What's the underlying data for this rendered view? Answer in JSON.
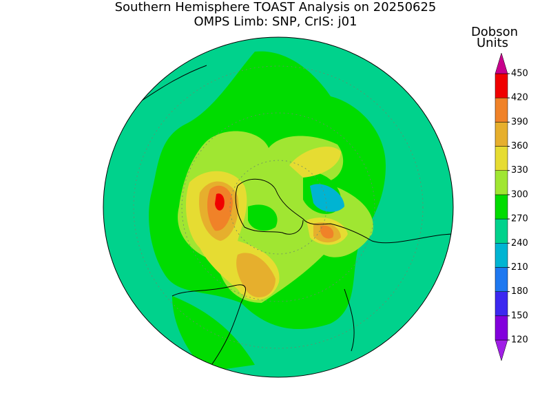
{
  "title": "Southern Hemisphere TOAST Analysis on 20250625",
  "subtitle": "OMPS Limb: SNP, CrIS: j01",
  "colorbar": {
    "label": [
      "Dobson",
      "Units"
    ],
    "ticks": [
      120,
      150,
      180,
      210,
      240,
      270,
      300,
      330,
      360,
      390,
      420,
      450
    ],
    "colors": [
      "#a01ee6",
      "#8200dc",
      "#3c28f0",
      "#1e78f0",
      "#00b4d2",
      "#00d28c",
      "#00dc00",
      "#a0e632",
      "#e6dc32",
      "#e6af2d",
      "#f08228",
      "#f00000",
      "#c8008c"
    ]
  }
}
